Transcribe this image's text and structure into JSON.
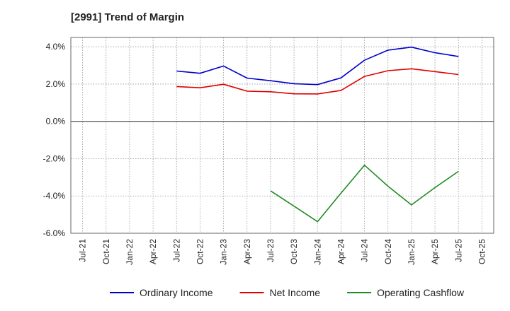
{
  "chart_data": {
    "type": "line",
    "title": "[2991]  Trend of Margin",
    "xlabel": "",
    "ylabel": "",
    "ylim": [
      -6.0,
      4.5
    ],
    "grid": true,
    "legend_position": "bottom",
    "y_ticks": [
      "4.0%",
      "2.0%",
      "0.0%",
      "-2.0%",
      "-4.0%",
      "-6.0%"
    ],
    "y_tick_values": [
      4,
      2,
      0,
      -2,
      -4,
      -6
    ],
    "categories": [
      "Jul-21",
      "Oct-21",
      "Jan-22",
      "Apr-22",
      "Jul-22",
      "Oct-22",
      "Jan-23",
      "Apr-23",
      "Jul-23",
      "Oct-23",
      "Jan-24",
      "Apr-24",
      "Jul-24",
      "Oct-24",
      "Jan-25",
      "Apr-25",
      "Jul-25",
      "Oct-25"
    ],
    "series": [
      {
        "name": "Ordinary Income",
        "color": "#0000cc",
        "values": [
          null,
          null,
          null,
          null,
          2.7,
          2.58,
          2.97,
          2.32,
          2.18,
          2.02,
          1.97,
          2.33,
          3.28,
          3.82,
          3.98,
          3.68,
          3.48,
          null
        ]
      },
      {
        "name": "Net Income",
        "color": "#e00000",
        "values": [
          null,
          null,
          null,
          null,
          1.87,
          1.8,
          1.99,
          1.62,
          1.59,
          1.48,
          1.47,
          1.66,
          2.41,
          2.72,
          2.82,
          2.67,
          2.51,
          null
        ]
      },
      {
        "name": "Operating Cashflow",
        "color": "#228b22",
        "values": [
          null,
          null,
          null,
          null,
          null,
          null,
          null,
          null,
          -3.72,
          -4.55,
          -5.38,
          -3.85,
          -2.35,
          -3.48,
          -4.48,
          -3.55,
          -2.68,
          null
        ]
      }
    ]
  }
}
